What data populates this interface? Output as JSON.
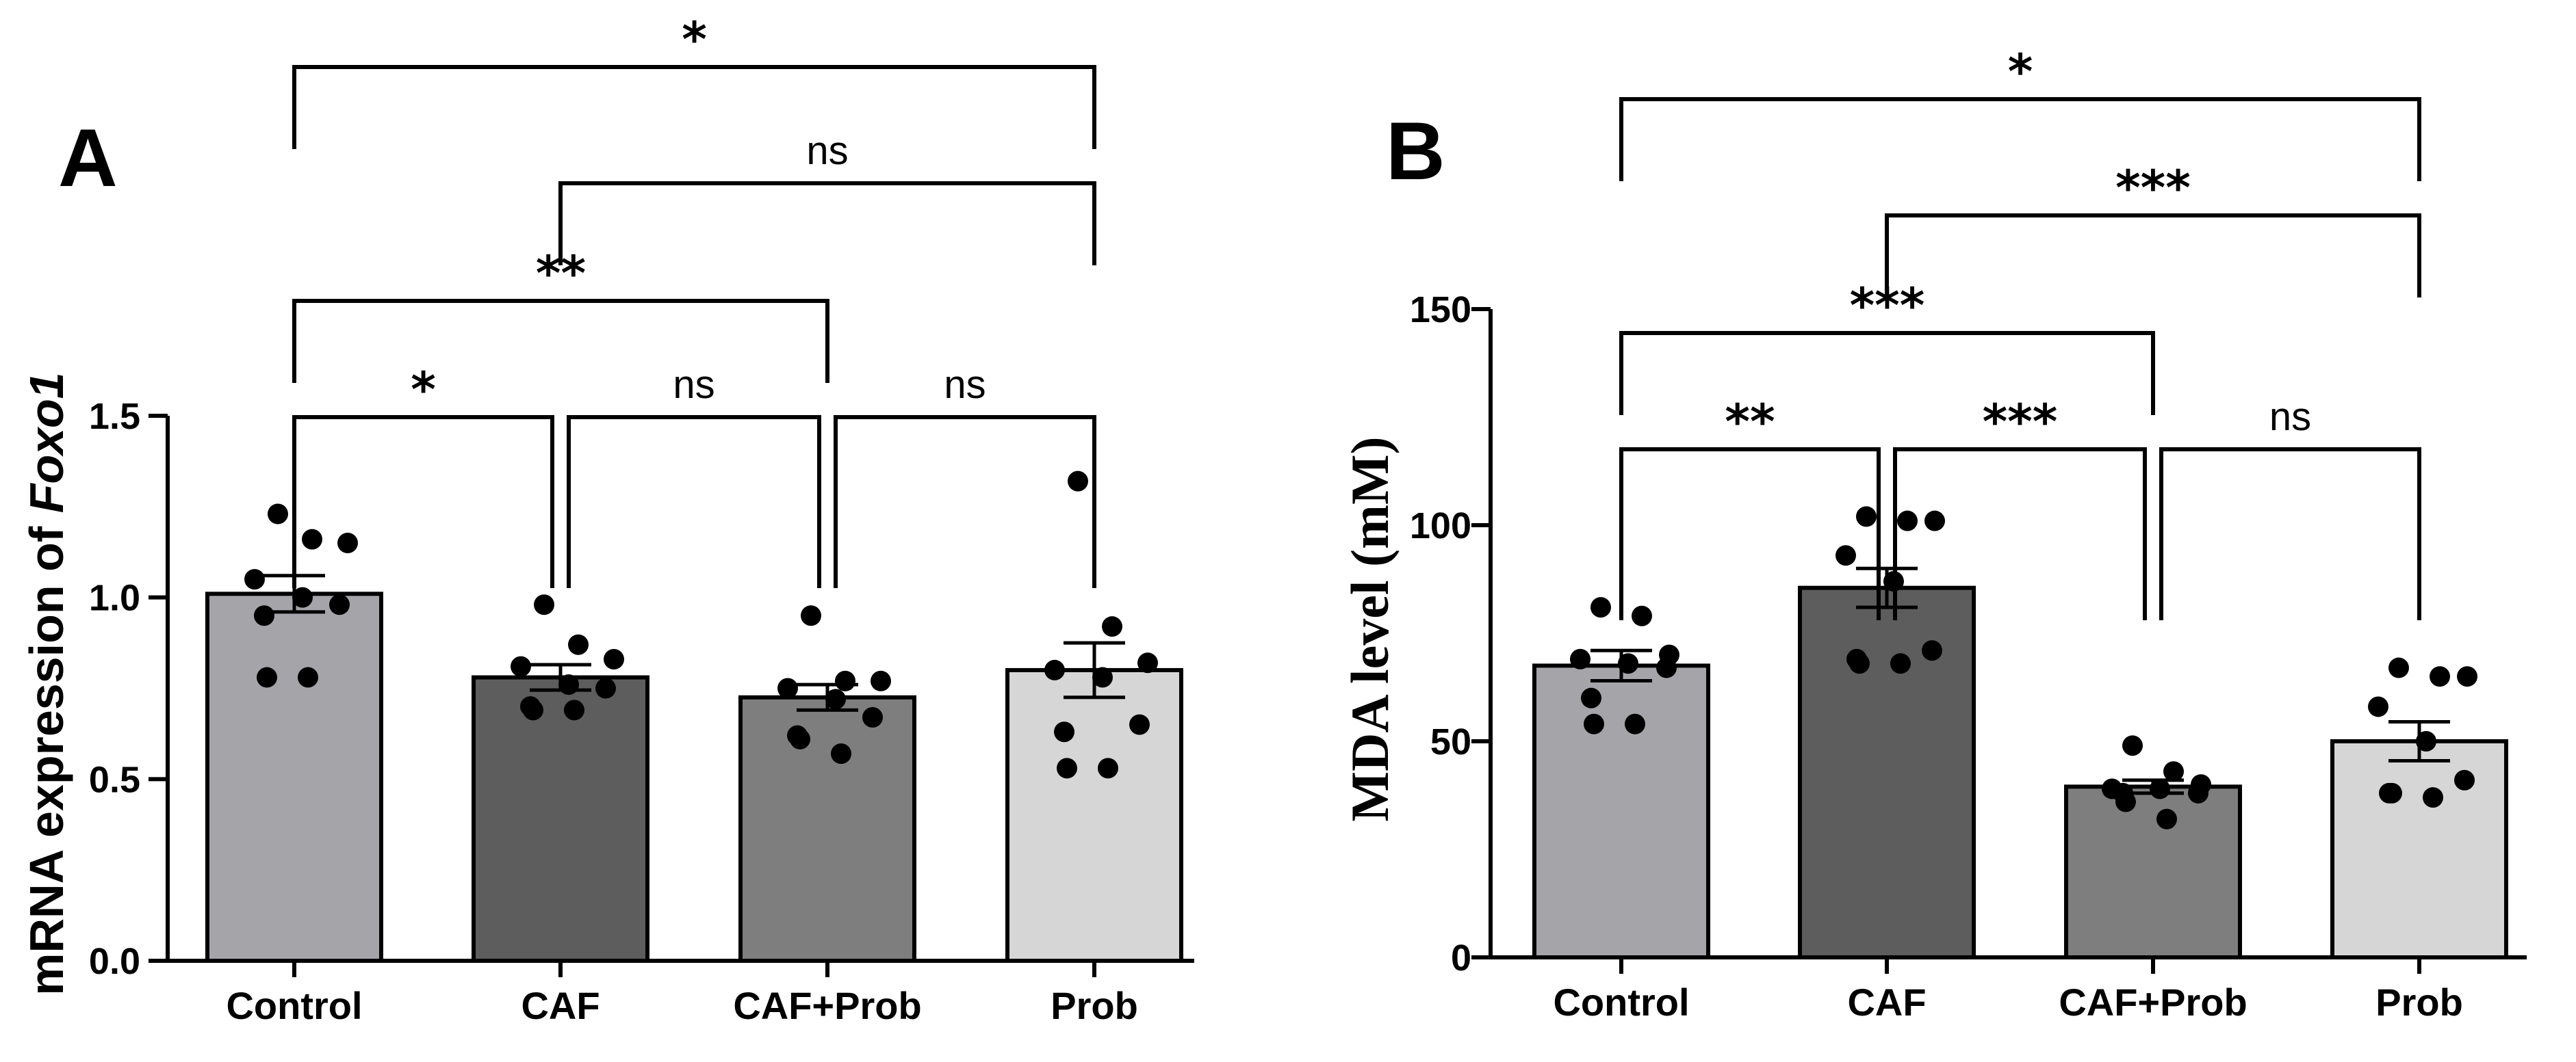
{
  "chart_data": [
    {
      "type": "bar",
      "panel_label": "A",
      "ylabel_prefix": "mRNA expression of ",
      "ylabel_gene": "Foxo1",
      "ylim": [
        0,
        1.5
      ],
      "yticks": [
        "0.0",
        "0.5",
        "1.0",
        "1.5"
      ],
      "ytick_values": [
        0,
        0.5,
        1.0,
        1.5
      ],
      "categories": [
        "Control",
        "CAF",
        "CAF+Prob",
        "Prob"
      ],
      "values": [
        1.01,
        0.78,
        0.725,
        0.8
      ],
      "sem": [
        0.05,
        0.035,
        0.035,
        0.075
      ],
      "bar_colors": [
        "#a5a4a9",
        "#5d5d5d",
        "#7e7e7e",
        "#d6d6d6"
      ],
      "points": [
        [
          1.23,
          1.16,
          1.15,
          1.05,
          1.0,
          0.98,
          0.95,
          0.78,
          0.78
        ],
        [
          0.98,
          0.87,
          0.83,
          0.81,
          0.76,
          0.75,
          0.7,
          0.69,
          0.69
        ],
        [
          0.95,
          0.77,
          0.77,
          0.75,
          0.72,
          0.67,
          0.62,
          0.61,
          0.57
        ],
        [
          1.32,
          0.92,
          0.82,
          0.8,
          0.78,
          0.65,
          0.63,
          0.53,
          0.53
        ]
      ],
      "comparisons": [
        {
          "from": 0,
          "to": 1,
          "label": "*"
        },
        {
          "from": 1,
          "to": 2,
          "label": "ns"
        },
        {
          "from": 2,
          "to": 3,
          "label": "ns"
        },
        {
          "from": 0,
          "to": 2,
          "label": "**"
        },
        {
          "from": 1,
          "to": 3,
          "label": "ns"
        },
        {
          "from": 0,
          "to": 3,
          "label": "*"
        }
      ]
    },
    {
      "type": "bar",
      "panel_label": "B",
      "ylabel": "MDA level (mM)",
      "ylim": [
        0,
        150
      ],
      "yticks": [
        "0",
        "50",
        "100",
        "150"
      ],
      "ytick_values": [
        0,
        50,
        100,
        150
      ],
      "categories": [
        "Control",
        "CAF",
        "CAF+Prob",
        "Prob"
      ],
      "values": [
        67.5,
        85.5,
        39.5,
        50.0
      ],
      "sem": [
        3.5,
        4.5,
        1.5,
        4.5
      ],
      "bar_colors": [
        "#a5a4a9",
        "#5d5d5d",
        "#7e7e7e",
        "#d6d6d6"
      ],
      "points": [
        [
          81,
          79,
          70,
          69,
          68,
          67,
          60,
          54,
          54
        ],
        [
          102,
          101,
          101,
          93,
          87,
          71,
          69,
          68,
          68
        ],
        [
          49,
          43,
          40,
          39,
          39,
          38,
          38,
          36,
          32
        ],
        [
          67,
          65,
          65,
          58,
          50,
          41,
          38,
          38,
          37
        ]
      ],
      "comparisons": [
        {
          "from": 0,
          "to": 1,
          "label": "**"
        },
        {
          "from": 1,
          "to": 2,
          "label": "***"
        },
        {
          "from": 2,
          "to": 3,
          "label": "ns"
        },
        {
          "from": 0,
          "to": 2,
          "label": "***"
        },
        {
          "from": 1,
          "to": 3,
          "label": "***"
        },
        {
          "from": 0,
          "to": 3,
          "label": "*"
        }
      ]
    }
  ]
}
